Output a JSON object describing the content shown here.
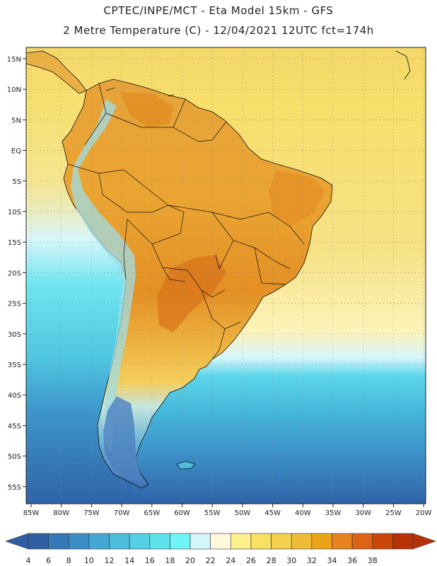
{
  "title_line1": "CPTEC/INPE/MCT -  Eta Model 15km - GFS",
  "title_line2": "2 Metre Temperature (C) - 12/04/2021 12UTC fct=174h",
  "lat_labels": [
    "15N",
    "10N",
    "5N",
    "EQ",
    "5S",
    "10S",
    "15S",
    "20S",
    "25S",
    "30S",
    "35S",
    "40S",
    "45S",
    "50S",
    "55S"
  ],
  "lon_labels": [
    "85W",
    "80W",
    "75W",
    "70W",
    "65W",
    "60W",
    "55W",
    "50W",
    "45W",
    "40W",
    "35W",
    "30W",
    "25W",
    "20W"
  ],
  "colorbar": {
    "labels": [
      "4",
      "6",
      "8",
      "10",
      "12",
      "14",
      "16",
      "18",
      "20",
      "22",
      "24",
      "26",
      "28",
      "30",
      "32",
      "34",
      "36",
      "38"
    ],
    "colors": [
      "#2f5fa3",
      "#3578b8",
      "#3c8fc6",
      "#45a7d3",
      "#4fbcdc",
      "#55d0e4",
      "#5ee2ec",
      "#70f4f7",
      "#d2f6fa",
      "#fff8dc",
      "#fdf08c",
      "#f7e064",
      "#f2cf4c",
      "#eebd38",
      "#eba41a",
      "#e58420",
      "#de6314",
      "#c94808",
      "#b6330a"
    ]
  },
  "map": {
    "ocean_colors": {
      "tropical": "#f7df6a",
      "subtropical": "#fdf3b8",
      "temperate": "#5cd6ea",
      "cold": "#3d95cb",
      "polar": "#2f63a8"
    },
    "land_colors": {
      "hot": "#e08a1e",
      "warm": "#eaa431",
      "mild": "#f2c24a",
      "cool": "#9fdde7",
      "cold": "#4b7fbf"
    }
  }
}
